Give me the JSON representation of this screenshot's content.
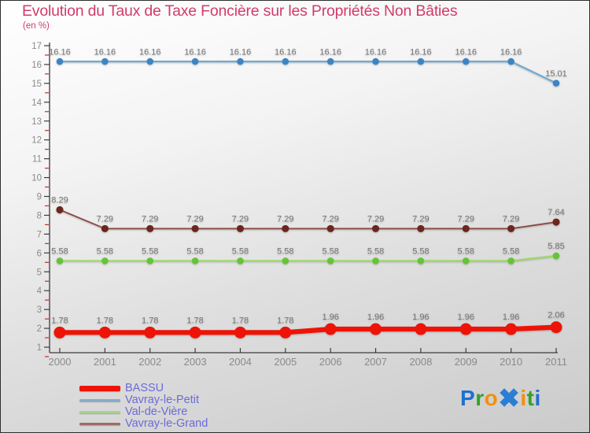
{
  "title": "Evolution du Taux de Taxe Foncière sur les Propriétés Non Bâties",
  "subtitle": "(en %)",
  "title_color": "#d23c6a",
  "chart_data": {
    "type": "line",
    "x": [
      "2000",
      "2001",
      "2002",
      "2003",
      "2004",
      "2005",
      "2006",
      "2007",
      "2008",
      "2009",
      "2010",
      "2011"
    ],
    "title": "Evolution du Taux de Taxe Foncière sur les Propriétés Non Bâties",
    "subtitle": "(en %)",
    "xlabel": "",
    "ylabel": "en %",
    "ylim": [
      1,
      17
    ],
    "ytick_step": 1,
    "grid": false,
    "legend_position": "bottom-left",
    "point_labels": true,
    "series": [
      {
        "name": "Vavray-le-Petit",
        "color": "#74a9d0",
        "marker_color": "#3c85c4",
        "width": 2.2,
        "marker_r": 4.3,
        "values": [
          16.16,
          16.16,
          16.16,
          16.16,
          16.16,
          16.16,
          16.16,
          16.16,
          16.16,
          16.16,
          16.16,
          15.01
        ]
      },
      {
        "name": "Vavray-le-Grand",
        "color": "#8a4a42",
        "marker_color": "#6b261f",
        "width": 1.8,
        "marker_r": 4.6,
        "values": [
          8.29,
          7.29,
          7.29,
          7.29,
          7.29,
          7.29,
          7.29,
          7.29,
          7.29,
          7.29,
          7.29,
          7.64
        ]
      },
      {
        "name": "Val-de-Vière",
        "color": "#98da60",
        "marker_color": "#63c437",
        "width": 2.0,
        "marker_r": 4.3,
        "values": [
          5.58,
          5.58,
          5.58,
          5.58,
          5.58,
          5.58,
          5.58,
          5.58,
          5.58,
          5.58,
          5.58,
          5.85
        ]
      },
      {
        "name": "BASSU",
        "color": "#ee1307",
        "marker_color": "#ee1307",
        "width": 6.2,
        "marker_r": 7.5,
        "values": [
          1.78,
          1.78,
          1.78,
          1.78,
          1.78,
          1.78,
          1.96,
          1.96,
          1.96,
          1.96,
          1.96,
          2.06
        ]
      }
    ]
  },
  "axis": {
    "line_color": "#3c3c3c",
    "tick_label_color": "#8a8a8a",
    "minor_tick_color": "#cc2a1e",
    "value_label_color": "#757575"
  },
  "legend": {
    "text_color": "#6b6bd8",
    "items": [
      {
        "label": "BASSU",
        "color": "#ee1307",
        "thick": true
      },
      {
        "label": "Vavray-le-Petit",
        "color": "#88abc8",
        "thick": false
      },
      {
        "label": "Val-de-Vière",
        "color": "#a8d38c",
        "thick": false
      },
      {
        "label": "Vavray-le-Grand",
        "color": "#9a6e66",
        "thick": false
      }
    ]
  },
  "logo": {
    "name": "Proxiti",
    "letters": [
      {
        "ch": "P",
        "color": "#1e6fd2",
        "big": false
      },
      {
        "ch": "r",
        "color": "#34a12c",
        "big": false
      },
      {
        "ch": "o",
        "color": "#f2900f",
        "big": false
      },
      {
        "ch": "✖",
        "color": "#2a7fd4",
        "big": true
      },
      {
        "ch": "i",
        "color": "#f2900f",
        "big": false
      },
      {
        "ch": "t",
        "color": "#34a12c",
        "big": false
      },
      {
        "ch": "i",
        "color": "#1e6fd2",
        "big": false
      }
    ]
  }
}
